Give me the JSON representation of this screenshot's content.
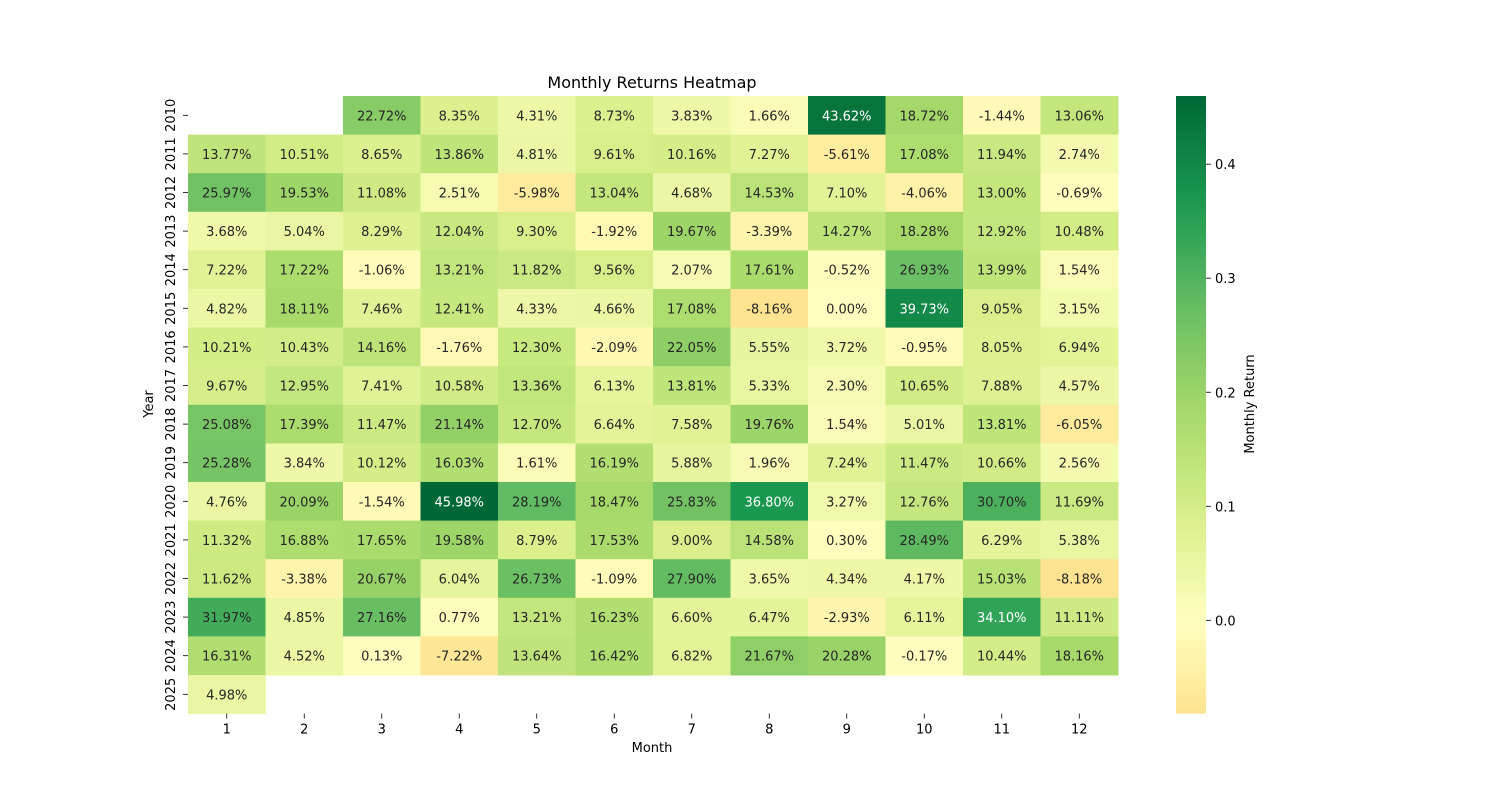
{
  "chart_data": {
    "type": "heatmap",
    "title": "Monthly Returns Heatmap",
    "xlabel": "Month",
    "ylabel": "Year",
    "x_categories": [
      "1",
      "2",
      "3",
      "4",
      "5",
      "6",
      "7",
      "8",
      "9",
      "10",
      "11",
      "12"
    ],
    "y_categories": [
      "2010",
      "2011",
      "2012",
      "2013",
      "2014",
      "2015",
      "2016",
      "2017",
      "2018",
      "2019",
      "2020",
      "2021",
      "2022",
      "2023",
      "2024",
      "2025"
    ],
    "values": [
      [
        null,
        null,
        22.72,
        8.35,
        4.31,
        8.73,
        3.83,
        1.66,
        43.62,
        18.72,
        -1.44,
        13.06
      ],
      [
        13.77,
        10.51,
        8.65,
        13.86,
        4.81,
        9.61,
        10.16,
        7.27,
        -5.61,
        17.08,
        11.94,
        2.74
      ],
      [
        25.97,
        19.53,
        11.08,
        2.51,
        -5.98,
        13.04,
        4.68,
        14.53,
        7.1,
        -4.06,
        13.0,
        -0.69
      ],
      [
        3.68,
        5.04,
        8.29,
        12.04,
        9.3,
        -1.92,
        19.67,
        -3.39,
        14.27,
        18.28,
        12.92,
        10.48
      ],
      [
        7.22,
        17.22,
        -1.06,
        13.21,
        11.82,
        9.56,
        2.07,
        17.61,
        -0.52,
        26.93,
        13.99,
        1.54
      ],
      [
        4.82,
        18.11,
        7.46,
        12.41,
        4.33,
        4.66,
        17.08,
        -8.16,
        0.0,
        39.73,
        9.05,
        3.15
      ],
      [
        10.21,
        10.43,
        14.16,
        -1.76,
        12.3,
        -2.09,
        22.05,
        5.55,
        3.72,
        -0.95,
        8.05,
        6.94
      ],
      [
        9.67,
        12.95,
        7.41,
        10.58,
        13.36,
        6.13,
        13.81,
        5.33,
        2.3,
        10.65,
        7.88,
        4.57
      ],
      [
        25.08,
        17.39,
        11.47,
        21.14,
        12.7,
        6.64,
        7.58,
        19.76,
        1.54,
        5.01,
        13.81,
        -6.05
      ],
      [
        25.28,
        3.84,
        10.12,
        16.03,
        1.61,
        16.19,
        5.88,
        1.96,
        7.24,
        11.47,
        10.66,
        2.56
      ],
      [
        4.76,
        20.09,
        -1.54,
        45.98,
        28.19,
        18.47,
        25.83,
        36.8,
        3.27,
        12.76,
        30.7,
        11.69
      ],
      [
        11.32,
        16.88,
        17.65,
        19.58,
        8.79,
        17.53,
        9.0,
        14.58,
        0.3,
        28.49,
        6.29,
        5.38
      ],
      [
        11.62,
        -3.38,
        20.67,
        6.04,
        26.73,
        -1.09,
        27.9,
        3.65,
        4.34,
        4.17,
        15.03,
        -8.18
      ],
      [
        31.97,
        4.85,
        27.16,
        0.77,
        13.21,
        16.23,
        6.6,
        6.47,
        -2.93,
        6.11,
        34.1,
        11.11
      ],
      [
        16.31,
        4.52,
        0.13,
        -7.22,
        13.64,
        16.42,
        6.82,
        21.67,
        20.28,
        -0.17,
        10.44,
        18.16
      ],
      [
        4.98,
        null,
        null,
        null,
        null,
        null,
        null,
        null,
        null,
        null,
        null,
        null
      ]
    ],
    "cell_label_suffix": "%",
    "colormap": "RdYlGn",
    "colormap_center": 0.0,
    "colorbar": {
      "label": "Monthly Return",
      "min": -0.0818,
      "max": 0.4598,
      "ticks": [
        "0.0",
        "0.1",
        "0.2",
        "0.3",
        "0.4"
      ],
      "tick_values": [
        0.0,
        0.1,
        0.2,
        0.3,
        0.4
      ]
    },
    "colors": {
      "zero": "#feffbe",
      "negative_end": "#fee08b",
      "positive_end": "#006837"
    }
  }
}
